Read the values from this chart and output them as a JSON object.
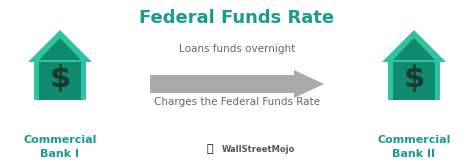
{
  "title": "Federal Funds Rate",
  "title_color": "#1a9b8e",
  "title_fontsize": 13,
  "arrow_label_top": "Loans funds overnight",
  "arrow_label_bottom": "Charges the Federal Funds Rate",
  "label_color": "#666666",
  "label_fontsize": 7.5,
  "bank_left_label": "Commercial\nBank I",
  "bank_right_label": "Commercial\nBank II",
  "bank_label_color": "#1a9b8e",
  "bank_label_fontsize": 8,
  "house_light_color": "#2ec4a0",
  "house_dark_color": "#0f8a70",
  "arrow_color": "#aaaaaa",
  "watermark_text": "WallStreetMojo",
  "watermark_color": "#555555",
  "watermark_fontsize": 6,
  "bg_color": "#ffffff"
}
